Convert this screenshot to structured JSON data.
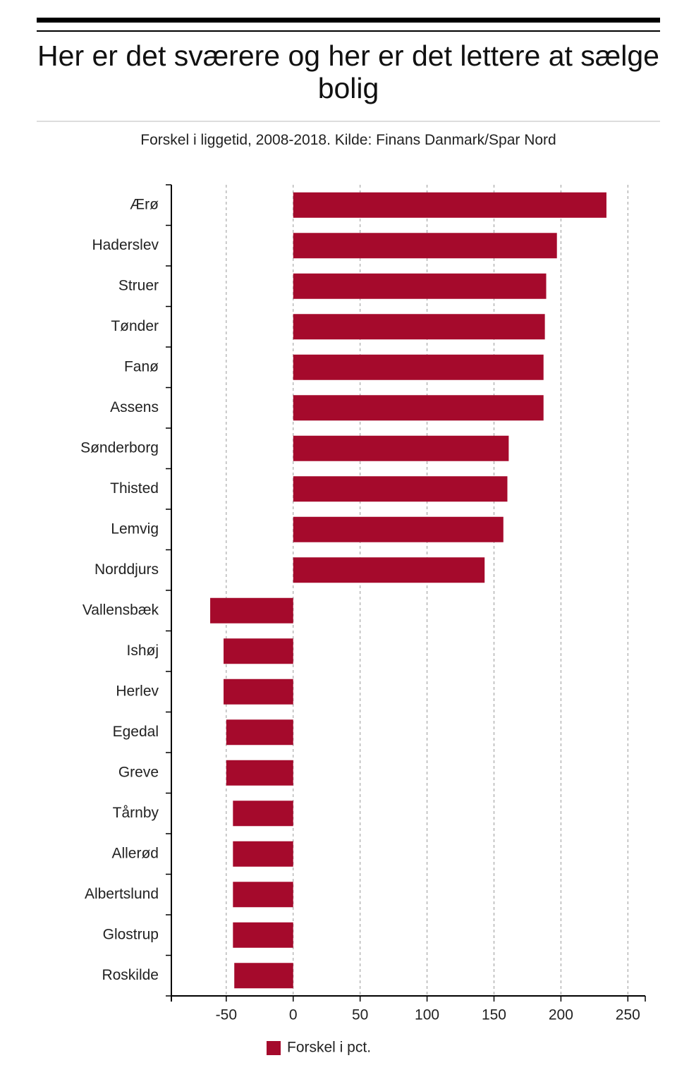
{
  "chart_data": {
    "type": "bar",
    "orientation": "horizontal",
    "title": "Her er det sværere og her er det lettere at sælge bolig",
    "subtitle": "Forskel i liggetid, 2008-2018. Kilde: Finans Danmark/Spar Nord",
    "categories": [
      "Ærø",
      "Haderslev",
      "Struer",
      "Tønder",
      "Fanø",
      "Assens",
      "Sønderborg",
      "Thisted",
      "Lemvig",
      "Norddjurs",
      "Vallensbæk",
      "Ishøj",
      "Herlev",
      "Egedal",
      "Greve",
      "Tårnby",
      "Allerød",
      "Albertslund",
      "Glostrup",
      "Roskilde"
    ],
    "series": [
      {
        "name": "Forskel i pct.",
        "color": "#a50a2c",
        "values": [
          234,
          197,
          189,
          188,
          187,
          187,
          161,
          160,
          157,
          143,
          -62,
          -52,
          -52,
          -50,
          -50,
          -45,
          -45,
          -45,
          -45,
          -44
        ]
      }
    ],
    "xlim": [
      -91,
      263
    ],
    "xticks": [
      -50,
      0,
      50,
      100,
      150,
      200,
      250
    ],
    "grid": true,
    "legend": "bottom"
  }
}
